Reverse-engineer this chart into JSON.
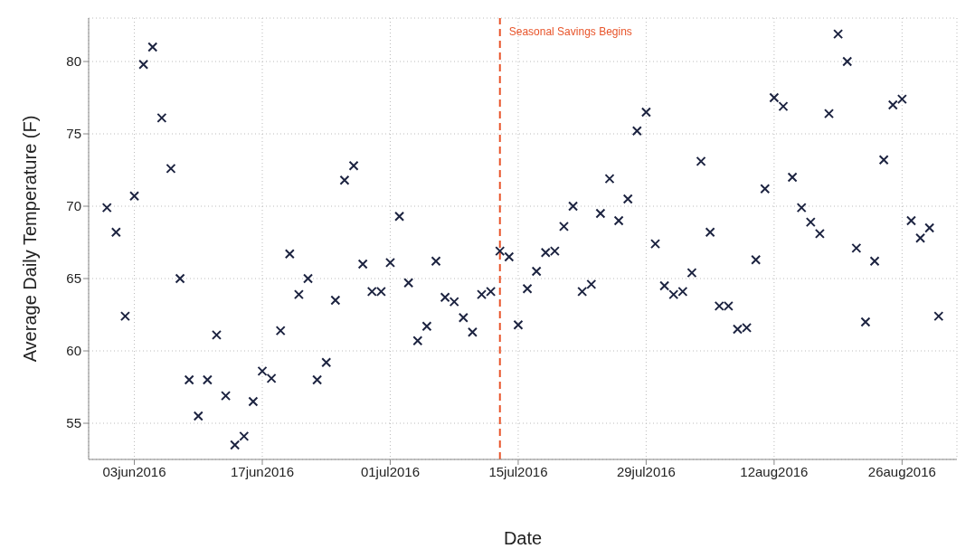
{
  "chart_data": {
    "type": "scatter",
    "xlabel": "Date",
    "ylabel": "Average Daily Temperature (F)",
    "x": [
      "2016-05-31",
      "2016-06-01",
      "2016-06-02",
      "2016-06-03",
      "2016-06-04",
      "2016-06-05",
      "2016-06-06",
      "2016-06-07",
      "2016-06-08",
      "2016-06-09",
      "2016-06-10",
      "2016-06-11",
      "2016-06-12",
      "2016-06-13",
      "2016-06-14",
      "2016-06-15",
      "2016-06-16",
      "2016-06-17",
      "2016-06-18",
      "2016-06-19",
      "2016-06-20",
      "2016-06-21",
      "2016-06-22",
      "2016-06-23",
      "2016-06-24",
      "2016-06-25",
      "2016-06-26",
      "2016-06-27",
      "2016-06-28",
      "2016-06-29",
      "2016-06-30",
      "2016-07-01",
      "2016-07-02",
      "2016-07-03",
      "2016-07-04",
      "2016-07-05",
      "2016-07-06",
      "2016-07-07",
      "2016-07-08",
      "2016-07-09",
      "2016-07-10",
      "2016-07-11",
      "2016-07-12",
      "2016-07-13",
      "2016-07-14",
      "2016-07-15",
      "2016-07-16",
      "2016-07-17",
      "2016-07-18",
      "2016-07-19",
      "2016-07-20",
      "2016-07-21",
      "2016-07-22",
      "2016-07-23",
      "2016-07-24",
      "2016-07-25",
      "2016-07-26",
      "2016-07-27",
      "2016-07-28",
      "2016-07-29",
      "2016-07-30",
      "2016-07-31",
      "2016-08-01",
      "2016-08-02",
      "2016-08-03",
      "2016-08-04",
      "2016-08-05",
      "2016-08-06",
      "2016-08-07",
      "2016-08-08",
      "2016-08-09",
      "2016-08-10",
      "2016-08-11",
      "2016-08-12",
      "2016-08-13",
      "2016-08-14",
      "2016-08-15",
      "2016-08-16",
      "2016-08-17",
      "2016-08-18",
      "2016-08-19",
      "2016-08-20",
      "2016-08-21",
      "2016-08-22",
      "2016-08-23",
      "2016-08-24",
      "2016-08-25",
      "2016-08-26",
      "2016-08-27",
      "2016-08-28",
      "2016-08-29",
      "2016-08-30"
    ],
    "series": [
      {
        "color": "#1c2340",
        "values": [
          69.9,
          68.2,
          62.4,
          70.7,
          79.8,
          81.0,
          76.1,
          72.6,
          65.0,
          58.0,
          55.5,
          58.0,
          61.1,
          56.9,
          53.5,
          54.1,
          56.5,
          58.6,
          58.1,
          61.4,
          66.7,
          63.9,
          65.0,
          58.0,
          59.2,
          63.5,
          71.8,
          72.8,
          66.0,
          64.1,
          64.1,
          66.1,
          69.3,
          64.7,
          60.7,
          61.7,
          66.2,
          63.7,
          63.4,
          62.3,
          61.3,
          63.9,
          64.1,
          66.9,
          66.5,
          61.8,
          64.3,
          65.5,
          66.8,
          66.9,
          68.6,
          70.0,
          64.1,
          64.6,
          69.5,
          71.9,
          69.0,
          70.5,
          75.2,
          76.5,
          67.4,
          64.5,
          63.9,
          64.1,
          65.4,
          73.1,
          68.2,
          63.1,
          63.1,
          61.5,
          61.6,
          66.3,
          71.2,
          77.5,
          76.9,
          72.0,
          69.9,
          68.9,
          68.1,
          76.4,
          81.9,
          80.0,
          67.1,
          62.0,
          66.2,
          73.2,
          77.0,
          77.4,
          69.0,
          67.8,
          68.5,
          62.4
        ]
      }
    ],
    "xlim": [
      "2016-05-29",
      "2016-09-01"
    ],
    "xticks": [
      {
        "value": "2016-06-03",
        "label": "03jun2016"
      },
      {
        "value": "2016-06-17",
        "label": "17jun2016"
      },
      {
        "value": "2016-07-01",
        "label": "01jul2016"
      },
      {
        "value": "2016-07-15",
        "label": "15jul2016"
      },
      {
        "value": "2016-07-29",
        "label": "29jul2016"
      },
      {
        "value": "2016-08-12",
        "label": "12aug2016"
      },
      {
        "value": "2016-08-26",
        "label": "26aug2016"
      }
    ],
    "ylim": [
      52.5,
      83
    ],
    "yticks": [
      55,
      60,
      65,
      70,
      75,
      80
    ],
    "grid": true,
    "marker": "cross",
    "ref_lines": [
      {
        "axis": "x",
        "value": "2016-07-13",
        "label": "Seasonal Savings Begins",
        "color": "#e8542a",
        "line_style": "dashed"
      }
    ]
  }
}
